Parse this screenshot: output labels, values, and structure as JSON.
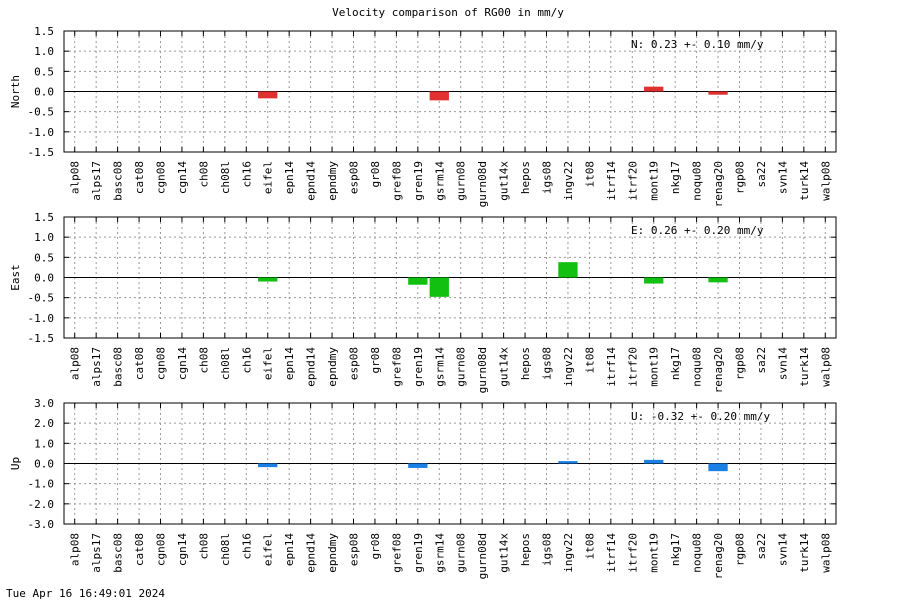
{
  "title": "Velocity comparison of RG00 in mm/y",
  "footer_timestamp": "Tue Apr 16 16:49:01 2024",
  "chart_data": {
    "type": "bar",
    "title": "Velocity comparison of RG00 in mm/y",
    "grid": true,
    "categories": [
      "alp08",
      "alps17",
      "basc08",
      "cat08",
      "cgn08",
      "cgn14",
      "ch08",
      "ch08l",
      "ch16",
      "eifel",
      "epn14",
      "epnd14",
      "epndmy",
      "esp08",
      "gr08",
      "gref08",
      "gren19",
      "gsrm14",
      "gurn08",
      "gurn08d",
      "gut14x",
      "hepos",
      "igs08",
      "ingv22",
      "it08",
      "itrf14",
      "itrf20",
      "mont19",
      "nkg17",
      "noqu08",
      "renag20",
      "rgp08",
      "sa22",
      "svn14",
      "turk14",
      "walp08"
    ],
    "panels": [
      {
        "ylabel": "North",
        "ylim": [
          -1.5,
          1.5
        ],
        "yticks": [
          "1.5",
          "1.0",
          "0.5",
          "0.0",
          "-0.5",
          "-1.0",
          "-1.5"
        ],
        "ytick_values": [
          1.5,
          1.0,
          0.5,
          0.0,
          -0.5,
          -1.0,
          -1.5
        ],
        "color": "#e03030",
        "summary": "N:   0.23 +-  0.10 mm/y",
        "values": {
          "eifel": -0.17,
          "gsrm14": -0.22,
          "mont19": 0.12,
          "renag20": -0.08
        }
      },
      {
        "ylabel": "East",
        "ylim": [
          -1.5,
          1.5
        ],
        "yticks": [
          "1.5",
          "1.0",
          "0.5",
          "0.0",
          "-0.5",
          "-1.0",
          "-1.5"
        ],
        "ytick_values": [
          1.5,
          1.0,
          0.5,
          0.0,
          -0.5,
          -1.0,
          -1.5
        ],
        "color": "#11c011",
        "summary": "E:   0.26 +-  0.20 mm/y",
        "values": {
          "eifel": -0.1,
          "gren19": -0.18,
          "gsrm14": -0.48,
          "ingv22": 0.38,
          "mont19": -0.15,
          "renag20": -0.12
        }
      },
      {
        "ylabel": "Up",
        "ylim": [
          -3.0,
          3.0
        ],
        "yticks": [
          "3.0",
          "2.0",
          "1.0",
          "0.0",
          "-1.0",
          "-2.0",
          "-3.0"
        ],
        "ytick_values": [
          3.0,
          2.0,
          1.0,
          0.0,
          -1.0,
          -2.0,
          -3.0
        ],
        "color": "#1a80e6",
        "summary": "U:  -0.32 +-  0.20 mm/y",
        "values": {
          "eifel": -0.18,
          "gren19": -0.22,
          "ingv22": 0.12,
          "mont19": 0.18,
          "renag20": -0.38
        }
      }
    ]
  }
}
